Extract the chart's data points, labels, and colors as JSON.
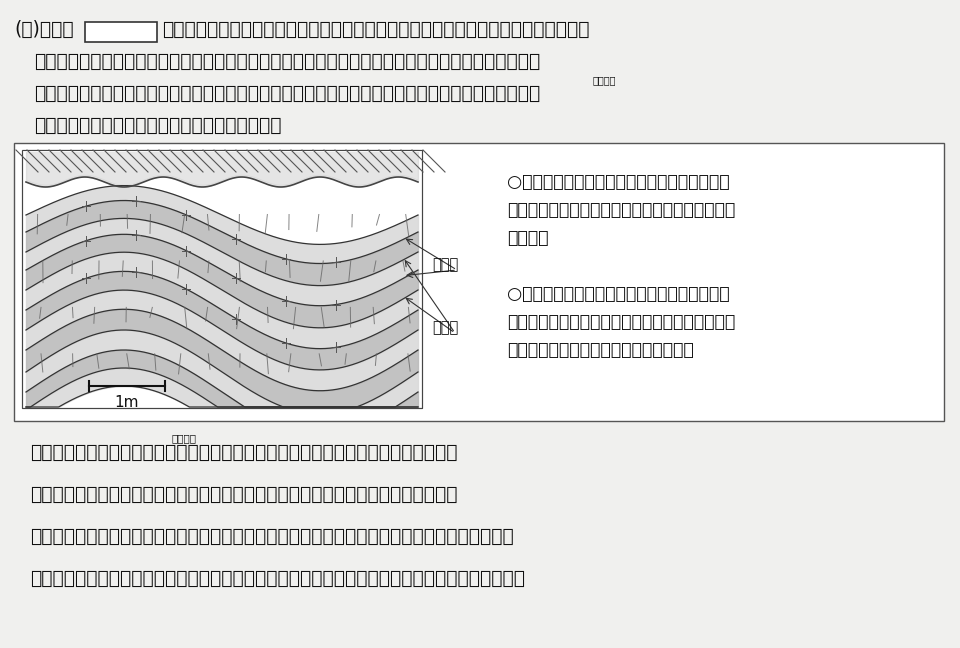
{
  "bg_color": "#f0f0ee",
  "box_bg": "#ffffff",
  "text_color": "#111111",
  "title_line1_a": "(ｲ)　次の",
  "title_line1_b": "は，波打つように曲がっている地層があらわれているがけを観察したときのスケッチ",
  "line2": "と，その状態を記録したメモである。この地層ができた過程を説明したものとして最も適するものを",
  "line3": "あとの１〜４の中から一つ選び，その番号を書きなさい。なお，地層は堆積した当時の順序を保って",
  "line3_ruby": "たいせき",
  "line4": "おり，下になるほど古い地層であるものとする。",
  "memo_line1": "○　地面に対し，ほぼ垂直ながけに地層があら",
  "memo_line2": "　　われていて，地層は波打つように曲がってい",
  "memo_line3": "　　た。",
  "memo_line4": "○　地層は，主に灰色の細かく粒のそろった砂",
  "memo_line5": "　　でできている砂の層と，黒っぽい泥でできて",
  "memo_line6": "　　いる泥の層が交互に重なっていた。",
  "label_suna": "砂の層",
  "label_doro": "泥の層",
  "scale_label": "1m",
  "answer1": "１．　波打つように凹凸のある海底に，川から流れ出た砂や泥がゆっくり堆積した。",
  "answer1_ruby": "おうとつ",
  "answer2": "２．　河口近くの場所で，川から砂や泥が一気に海底に流れ込んで一度に堆積した。",
  "answer3": "３．　ほぼ水平に堆積していた地層において，上に堆積した地層の重みで下の地層が曲がった。",
  "answer4": "４．　ほぼ水平に堆積していた地層が，水平方向から押し縮められるような力を受けて曲がった。",
  "font_size_main": 13.5,
  "font_size_answers": 13.5,
  "font_size_memo": 12.5
}
